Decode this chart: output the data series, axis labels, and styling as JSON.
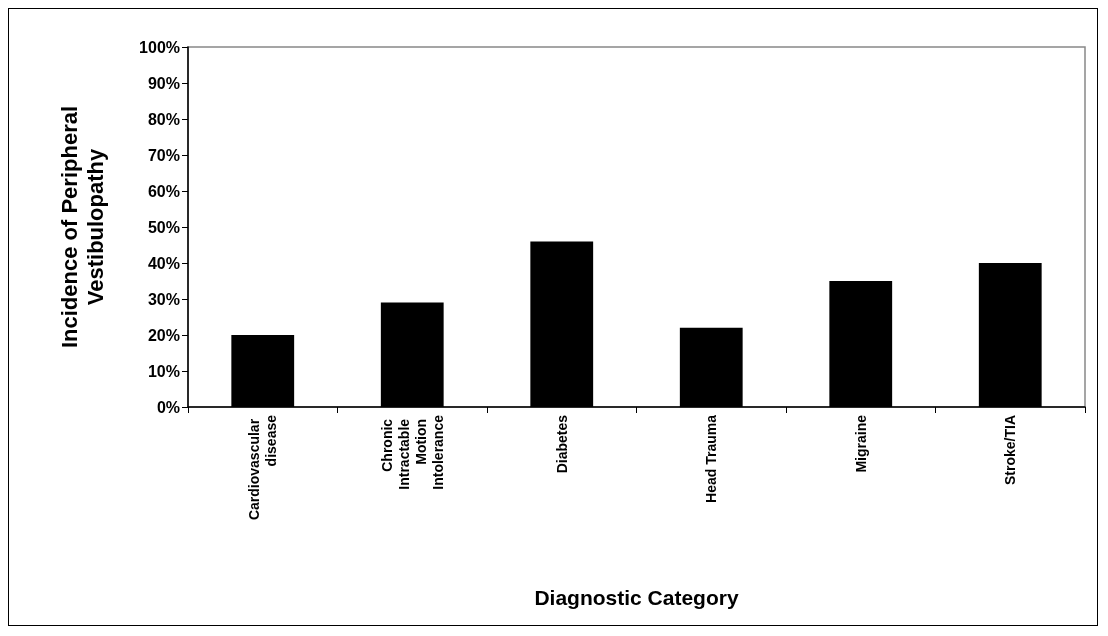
{
  "chart_data": {
    "type": "bar",
    "xlabel": "Diagnostic Category",
    "ylabel": "Incidence of Peripheral Vestibulopathy",
    "categories": [
      "Cardiovascular disease",
      "Chronic Intractable Motion Intolerance",
      "Diabetes",
      "Head Trauma",
      "Migraine",
      "Stroke/TIA"
    ],
    "values": [
      20,
      29,
      46,
      22,
      35,
      40
    ],
    "color": "#000000",
    "ylim": [
      0,
      100
    ],
    "yticks": [
      {
        "value": 0,
        "label": "0%"
      },
      {
        "value": 10,
        "label": "10%"
      },
      {
        "value": 20,
        "label": "20%"
      },
      {
        "value": 30,
        "label": "30%"
      },
      {
        "value": 40,
        "label": "40%"
      },
      {
        "value": 50,
        "label": "50%"
      },
      {
        "value": 60,
        "label": "60%"
      },
      {
        "value": 70,
        "label": "70%"
      },
      {
        "value": 80,
        "label": "80%"
      },
      {
        "value": 90,
        "label": "90%"
      },
      {
        "value": 100,
        "label": "100%"
      }
    ],
    "grid": false
  }
}
